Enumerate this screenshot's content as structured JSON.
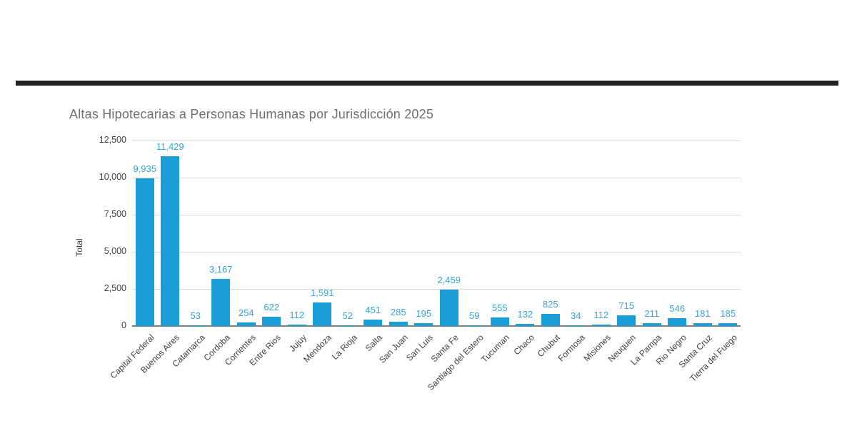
{
  "divider": {
    "color": "#242122"
  },
  "colors": {
    "bar": "#1B9ED8",
    "value_label": "#35A5DA",
    "title": "#6F6F6F",
    "axis_text": "#404040",
    "gridline": "#D9D9D9",
    "baseline": "#7F7F7F",
    "background": "#FFFFFF"
  },
  "chart_data": {
    "type": "bar",
    "title": "Altas Hipotecarias a Personas Humanas por Jurisdicción 2025",
    "xlabel": "",
    "ylabel": "Total",
    "ylim": [
      0,
      12500
    ],
    "grid": true,
    "legend": false,
    "yticks": [
      0,
      2500,
      5000,
      7500,
      10000,
      12500
    ],
    "ytick_labels": [
      "0",
      "2,500",
      "5,000",
      "7,500",
      "10,000",
      "12,500"
    ],
    "categories": [
      "Capital Federal",
      "Buenos Aires",
      "Catamarca",
      "Cordoba",
      "Corrientes",
      "Entre Rios",
      "Jujuy",
      "Mendoza",
      "La Rioja",
      "Salta",
      "San Juan",
      "San Luis",
      "Santa Fe",
      "Santiago del Estero",
      "Tucuman",
      "Chaco",
      "Chubut",
      "Formosa",
      "Misiones",
      "Neuquen",
      "La Pampa",
      "Rio Negro",
      "Santa Cruz",
      "Tierra del Fuego"
    ],
    "values": [
      9935,
      11429,
      53,
      3167,
      254,
      622,
      112,
      1591,
      52,
      451,
      285,
      195,
      2459,
      59,
      555,
      132,
      825,
      34,
      112,
      715,
      211,
      546,
      181,
      185
    ],
    "value_labels": [
      "9,935",
      "11,429",
      "53",
      "3,167",
      "254",
      "622",
      "112",
      "1,591",
      "52",
      "451",
      "285",
      "195",
      "2,459",
      "59",
      "555",
      "132",
      "825",
      "34",
      "112",
      "715",
      "211",
      "546",
      "181",
      "185"
    ]
  }
}
